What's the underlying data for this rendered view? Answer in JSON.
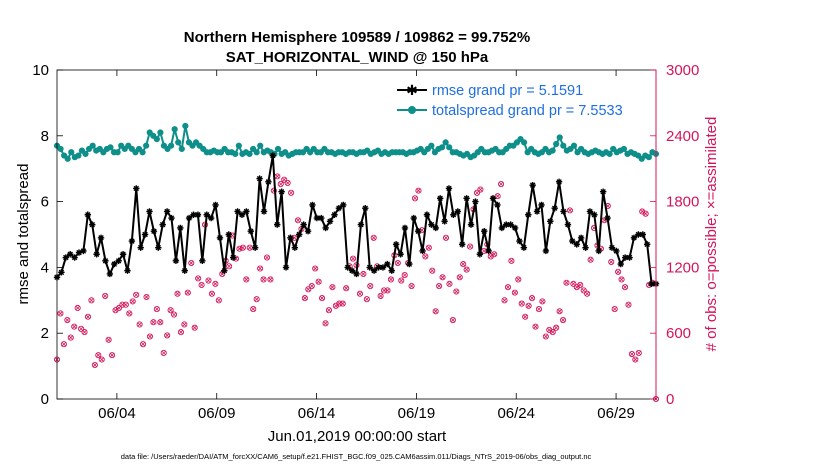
{
  "colors": {
    "rmse": "#000000",
    "spread": "#0e8f8a",
    "obs": "#d4145a",
    "legend_text": "#1f6fe0",
    "right_axis": "#d4145a"
  },
  "chart_data": {
    "type": "line",
    "title": "Northern Hemisphere 109589 / 109862 = 99.752%",
    "subtitle": "SAT_HORIZONTAL_WIND @ 150 hPa",
    "xlabel": "Jun.01,2019 00:00:00 start",
    "ylabel": "rmse and totalspread",
    "y2label": "# of obs: o=possible; ×=assimilated",
    "xlim": [
      0,
      30
    ],
    "ylim": [
      0,
      10
    ],
    "y2lim": [
      0,
      3000
    ],
    "xtick_positions": [
      3,
      8,
      13,
      18,
      23,
      28
    ],
    "xtick_labels": [
      "06/04",
      "06/09",
      "06/14",
      "06/19",
      "06/24",
      "06/29"
    ],
    "yticks": [
      0,
      2,
      4,
      6,
      8,
      10
    ],
    "y2ticks": [
      0,
      600,
      1200,
      1800,
      2400,
      3000
    ],
    "footer": "data file: /Users/raeder/DAI/ATM_forcXX/CAM6_setup/f.e21.FHIST_BGC.f09_025.CAM6assim.011/Diags_NTrS_2019-06/obs_diag_output.nc",
    "series": [
      {
        "name": "rmse",
        "legend": "rmse grand pr = 5.1591",
        "marker": "star",
        "values": [
          3.7,
          3.85,
          4.3,
          4.4,
          4.3,
          4.45,
          4.5,
          5.6,
          5.3,
          4.4,
          4.9,
          4.2,
          3.8,
          4.1,
          4.2,
          4.4,
          3.9,
          4.8,
          6.4,
          4.6,
          5.0,
          5.7,
          5.1,
          4.6,
          5.3,
          5.7,
          5.5,
          4.2,
          5.2,
          3.9,
          5.5,
          5.6,
          5.6,
          4.2,
          5.6,
          5.5,
          5.9,
          4.9,
          3.9,
          5.0,
          4.3,
          5.7,
          5.6,
          5.7,
          5.1,
          4.6,
          6.7,
          5.7,
          6.6,
          7.4,
          5.3,
          6.3,
          4.0,
          4.9,
          4.6,
          5.0,
          5.3,
          5.1,
          5.9,
          5.5,
          5.5,
          5.2,
          5.4,
          5.6,
          5.8,
          5.9,
          4.0,
          3.9,
          3.8,
          5.3,
          5.8,
          4.0,
          3.9,
          4.0,
          4.0,
          4.1,
          3.9,
          4.7,
          4.4,
          5.2,
          4.1,
          5.5,
          5.1,
          4.5,
          5.6,
          5.3,
          5.2,
          6.1,
          5.4,
          6.4,
          5.6,
          5.7,
          4.7,
          6.1,
          5.3,
          6.0,
          4.4,
          5.1,
          4.5,
          6.1,
          5.9,
          5.2,
          5.3,
          5.3,
          5.2,
          4.8,
          4.6,
          5.6,
          6.5,
          5.7,
          5.9,
          4.5,
          5.4,
          5.8,
          6.6,
          5.7,
          5.3,
          4.8,
          4.7,
          4.9,
          4.6,
          5.7,
          5.6,
          4.5,
          6.3,
          5.5,
          4.6,
          4.5,
          4.1,
          4.3,
          4.3,
          4.9,
          5.0,
          5.0,
          4.7,
          3.5,
          3.5
        ]
      },
      {
        "name": "totalspread",
        "legend": "totalspread grand pr = 7.5533",
        "marker": "circle",
        "values": [
          7.7,
          7.6,
          7.4,
          7.3,
          7.5,
          7.35,
          7.4,
          7.55,
          7.45,
          7.6,
          7.7,
          7.55,
          7.6,
          7.5,
          7.6,
          7.65,
          7.5,
          7.5,
          7.7,
          7.6,
          7.7,
          7.6,
          7.5,
          7.6,
          7.5,
          7.7,
          8.1,
          8.0,
          7.9,
          8.1,
          7.7,
          7.6,
          7.7,
          8.2,
          7.8,
          7.6,
          8.3,
          7.8,
          7.7,
          7.8,
          7.7,
          7.6,
          7.5,
          7.5,
          7.55,
          7.5,
          7.5,
          7.6,
          7.5,
          7.5,
          7.45,
          7.7,
          7.45,
          7.5,
          7.45,
          7.6,
          7.5,
          7.7,
          7.5,
          7.55,
          7.5,
          7.45,
          7.6,
          7.45,
          7.5,
          7.4,
          7.45,
          7.5,
          7.5,
          7.5,
          7.6,
          7.5,
          7.6,
          7.5,
          7.5,
          7.6,
          7.5,
          7.5,
          7.45,
          7.5,
          7.5,
          7.45,
          7.5,
          7.5,
          7.45,
          7.5,
          7.5,
          7.55,
          7.45,
          7.5,
          7.55,
          7.45,
          7.5,
          7.45,
          7.5,
          7.5,
          7.5,
          7.5,
          7.45,
          7.5,
          7.5,
          7.55,
          7.6,
          7.5,
          7.6,
          7.7,
          7.5,
          7.6,
          7.65,
          7.8,
          7.65,
          7.5,
          7.5,
          7.45,
          7.4,
          7.45,
          7.35,
          7.4,
          7.5,
          7.6,
          7.5,
          7.5,
          7.55,
          7.6,
          7.5,
          7.5,
          7.6,
          7.7,
          7.7,
          7.8,
          7.9,
          7.8,
          7.5,
          7.6,
          7.5,
          7.45,
          7.5,
          7.6,
          7.5,
          7.55,
          7.75,
          7.95,
          7.7,
          7.55,
          7.6,
          7.7,
          7.5,
          7.6,
          7.5,
          7.45,
          7.5,
          7.55,
          7.5,
          7.45,
          7.5,
          7.45,
          7.6,
          7.5,
          7.55,
          7.6,
          7.45,
          7.5,
          7.45,
          7.4,
          7.3,
          7.4,
          7.35,
          7.5,
          7.45
        ]
      },
      {
        "name": "obs_possible",
        "axis": "right",
        "marker": "o",
        "values": [
          360,
          780,
          500,
          720,
          560,
          660,
          830,
          640,
          610,
          750,
          900,
          310,
          400,
          360,
          940,
          540,
          400,
          810,
          830,
          860,
          860,
          780,
          890,
          950,
          680,
          500,
          930,
          570,
          700,
          820,
          700,
          420,
          580,
          810,
          770,
          960,
          610,
          680,
          970,
          1240,
          650,
          1100,
          1040,
          1590,
          1080,
          960,
          1050,
          900,
          1140,
          1260,
          1210,
          1490,
          1280,
          1370,
          1380,
          1090,
          1380,
          820,
          910,
          1190,
          1090,
          1290,
          1090,
          1900,
          2030,
          1960,
          2000,
          1970,
          1880,
          1470,
          1630,
          1550,
          920,
          1000,
          1030,
          1190,
          1070,
          920,
          690,
          810,
          1020,
          850,
          870,
          870,
          1010,
          1210,
          1280,
          1220,
          960,
          1140,
          910,
          1030,
          1470,
          1210,
          940,
          990,
          990,
          1090,
          1310,
          1240,
          1080,
          1130,
          1240,
          1030,
          1830,
          1900,
          1540,
          1300,
          1380,
          1170,
          800,
          1030,
          1110,
          1470,
          1050,
          720,
          980,
          1110,
          1230,
          1180,
          1390,
          1730,
          1880,
          1910,
          1350,
          1410,
          1300,
          1320,
          1850,
          1960,
          900,
          1020,
          1260,
          970,
          1090,
          870,
          750,
          850,
          920,
          660,
          820,
          890,
          570,
          630,
          610,
          650,
          800,
          720,
          1060,
          1720,
          1050,
          1020,
          1040,
          990,
          960,
          1270,
          1560,
          1400,
          1370,
          1630,
          1760,
          1250,
          820,
          1160,
          1090,
          1020,
          860,
          410,
          360,
          420,
          1710,
          1690,
          1040,
          1060,
          0
        ]
      }
    ]
  }
}
